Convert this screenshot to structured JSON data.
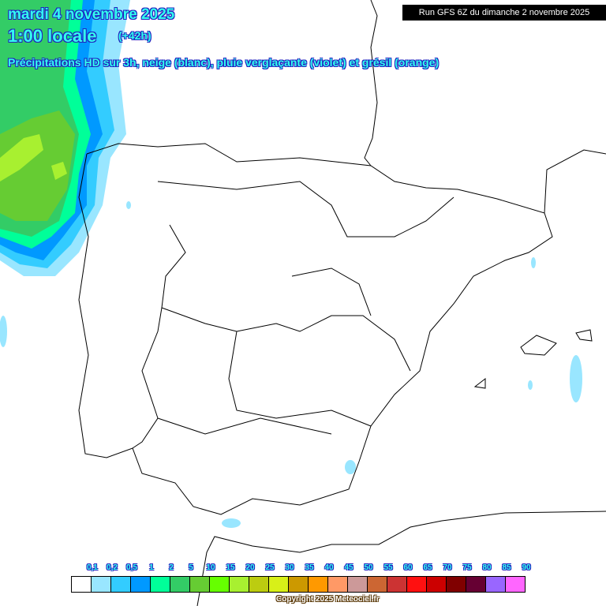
{
  "header": {
    "date": "mardi 4 novembre 2025",
    "time": "1:00 locale",
    "lead": "(+42h)",
    "description": "Précipitations HD sur 3h, neige (blanc), pluie verglaçante (violet) et grésil (orange)",
    "run": "Run GFS 6Z du dimanche 2 novembre 2025"
  },
  "legend": {
    "labels": [
      "0,1",
      "0,2",
      "0,5",
      "1",
      "2",
      "5",
      "10",
      "15",
      "20",
      "25",
      "30",
      "35",
      "40",
      "45",
      "50",
      "55",
      "60",
      "65",
      "70",
      "75",
      "80",
      "85",
      "90"
    ],
    "colors": [
      "#ffffff",
      "#99e6ff",
      "#33ccff",
      "#0099ff",
      "#00ff99",
      "#33cc66",
      "#66cc33",
      "#66ff00",
      "#a8f030",
      "#bccc10",
      "#d8f018",
      "#cc9900",
      "#ff9900",
      "#ff9966",
      "#cc9999",
      "#cc6633",
      "#cc3333",
      "#ff1010",
      "#cc0000",
      "#800000",
      "#660033",
      "#9966ff",
      "#ff66ff"
    ]
  },
  "copyright": "Copyright 2025 Meteociel.fr"
}
